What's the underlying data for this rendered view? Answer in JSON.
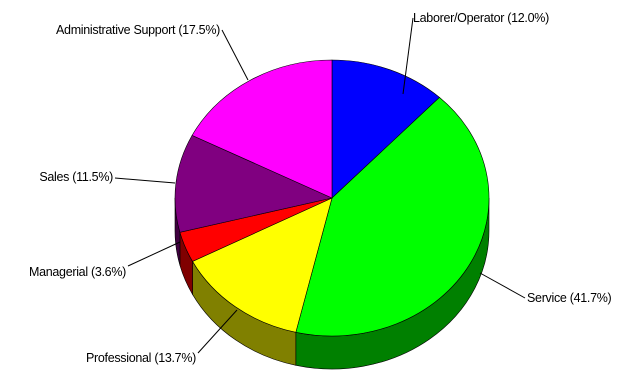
{
  "chart_data": {
    "type": "pie",
    "title": "",
    "style": "3d",
    "slices": [
      {
        "label": "Laborer/Operator (12.0%)",
        "value": 12.0,
        "color": "#0000ff",
        "side_color": "#00007f"
      },
      {
        "label": "Service (41.7%)",
        "value": 41.7,
        "color": "#00ff00",
        "side_color": "#008000"
      },
      {
        "label": "Professional (13.7%)",
        "value": 13.7,
        "color": "#ffff00",
        "side_color": "#808000"
      },
      {
        "label": "Managerial (3.6%)",
        "value": 3.6,
        "color": "#ff0000",
        "side_color": "#800000"
      },
      {
        "label": "Sales (11.5%)",
        "value": 11.5,
        "color": "#800080",
        "side_color": "#400040"
      },
      {
        "label": "Administrative Support (17.5%)",
        "value": 17.5,
        "color": "#ff00ff",
        "side_color": "#800080"
      }
    ],
    "start_angle_deg": 0,
    "direction": "clockwise"
  }
}
